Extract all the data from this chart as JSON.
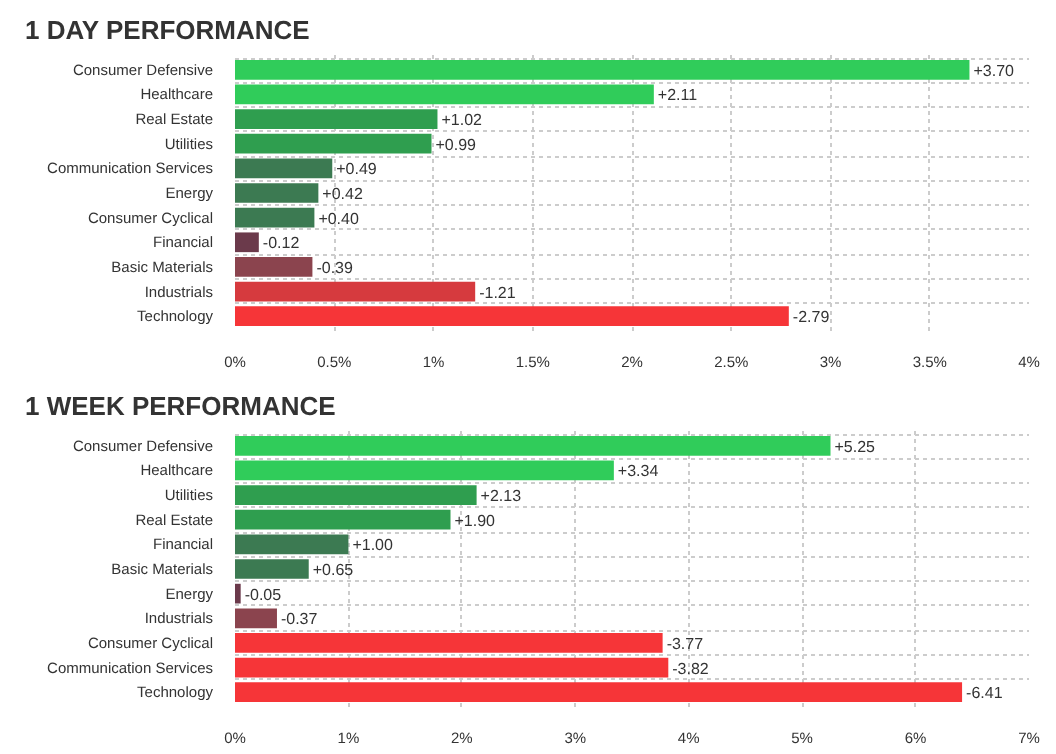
{
  "chart_data": [
    {
      "type": "bar",
      "title": "1 DAY PERFORMANCE",
      "orientation": "horizontal",
      "categories": [
        "Consumer Defensive",
        "Healthcare",
        "Real Estate",
        "Utilities",
        "Communication Services",
        "Energy",
        "Consumer Cyclical",
        "Financial",
        "Basic Materials",
        "Industrials",
        "Technology"
      ],
      "values": [
        3.7,
        2.11,
        1.02,
        0.99,
        0.49,
        0.42,
        0.4,
        -0.12,
        -0.39,
        -1.21,
        -2.79
      ],
      "base": [
        0,
        0,
        0,
        0,
        0,
        0,
        0,
        0.12,
        0.39,
        1.21,
        2.79
      ],
      "value_labels": [
        "+3.70",
        "+2.11",
        "+1.02",
        "+0.99",
        "+0.49",
        "+0.42",
        "+0.40",
        "-0.12",
        "-0.39",
        "-1.21",
        "-2.79"
      ],
      "colors": [
        "#30cc5a",
        "#30cc5a",
        "#2f9e4f",
        "#2f9e4f",
        "#3c7a52",
        "#3c7a52",
        "#3c7a52",
        "#6b3a4b",
        "#8b444e",
        "#d63a3e",
        "#f63538"
      ],
      "xlim": [
        0,
        4
      ],
      "xticks": [
        {
          "value": 0,
          "label": "0%"
        },
        {
          "value": 0.5,
          "label": "0.5%"
        },
        {
          "value": 1,
          "label": "1%"
        },
        {
          "value": 1.5,
          "label": "1.5%"
        },
        {
          "value": 2,
          "label": "2%"
        },
        {
          "value": 2.5,
          "label": "2.5%"
        },
        {
          "value": 3,
          "label": "3%"
        },
        {
          "value": 3.5,
          "label": "3.5%"
        },
        {
          "value": 4,
          "label": "4%"
        }
      ],
      "grid": true
    },
    {
      "type": "bar",
      "title": "1 WEEK PERFORMANCE",
      "orientation": "horizontal",
      "categories": [
        "Consumer Defensive",
        "Healthcare",
        "Utilities",
        "Real Estate",
        "Financial",
        "Basic Materials",
        "Energy",
        "Industrials",
        "Consumer Cyclical",
        "Communication Services",
        "Technology"
      ],
      "values": [
        5.25,
        3.34,
        2.13,
        1.9,
        1.0,
        0.65,
        -0.05,
        -0.37,
        -3.77,
        -3.82,
        -6.41
      ],
      "base": [
        0,
        0,
        0,
        0,
        0,
        0,
        0.05,
        0.37,
        3.77,
        3.82,
        6.41
      ],
      "value_labels": [
        "+5.25",
        "+3.34",
        "+2.13",
        "+1.90",
        "+1.00",
        "+0.65",
        "-0.05",
        "-0.37",
        "-3.77",
        "-3.82",
        "-6.41"
      ],
      "colors": [
        "#30cc5a",
        "#30cc5a",
        "#2f9e4f",
        "#2f9e4f",
        "#3c7a52",
        "#3c7a52",
        "#6b3a4b",
        "#8b444e",
        "#f63538",
        "#f63538",
        "#f63538"
      ],
      "xlim": [
        0,
        7
      ],
      "xticks": [
        {
          "value": 0,
          "label": "0%"
        },
        {
          "value": 1,
          "label": "1%"
        },
        {
          "value": 2,
          "label": "2%"
        },
        {
          "value": 3,
          "label": "3%"
        },
        {
          "value": 4,
          "label": "4%"
        },
        {
          "value": 5,
          "label": "5%"
        },
        {
          "value": 6,
          "label": "6%"
        },
        {
          "value": 7,
          "label": "7%"
        }
      ],
      "grid": true
    }
  ]
}
